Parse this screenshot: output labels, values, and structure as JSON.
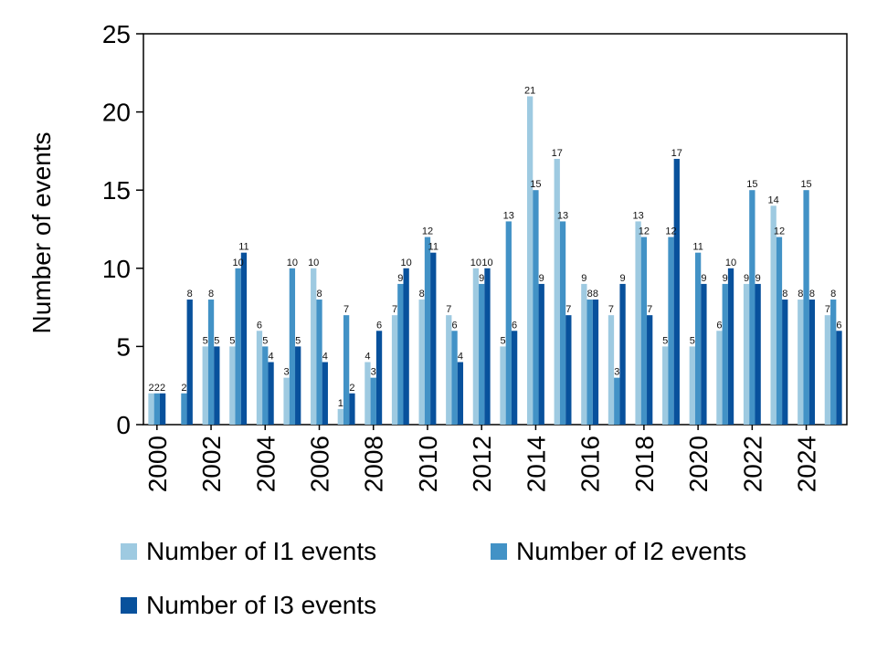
{
  "chart_data": {
    "type": "bar",
    "title": "",
    "xlabel": "",
    "ylabel": "Number of events",
    "ylim": [
      0,
      25
    ],
    "yticks": [
      0,
      5,
      10,
      15,
      20,
      25
    ],
    "grid": false,
    "legend_position": "bottom",
    "categories": [
      "2000",
      "2001",
      "2002",
      "2003",
      "2004",
      "2005",
      "2006",
      "2007",
      "2008",
      "2009",
      "2010",
      "2011",
      "2012",
      "2013",
      "2014",
      "2015",
      "2016",
      "2017",
      "2018",
      "2019",
      "2020",
      "2021",
      "2022",
      "2023",
      "2024",
      "2025"
    ],
    "xtick_labels": [
      "2000",
      "2002",
      "2004",
      "2006",
      "2008",
      "2010",
      "2012",
      "2014",
      "2016",
      "2018",
      "2020",
      "2022",
      "2024"
    ],
    "series": [
      {
        "name": "Number of I1 events",
        "color": "#9ecae1",
        "values": [
          2,
          0,
          5,
          5,
          6,
          3,
          10,
          1,
          4,
          7,
          8,
          7,
          10,
          5,
          21,
          17,
          9,
          7,
          13,
          5,
          5,
          6,
          9,
          14,
          8,
          7
        ]
      },
      {
        "name": "Number of I2 events",
        "color": "#4292c6",
        "values": [
          2,
          2,
          8,
          10,
          5,
          10,
          8,
          7,
          3,
          9,
          12,
          6,
          9,
          13,
          15,
          13,
          8,
          3,
          12,
          12,
          11,
          9,
          15,
          12,
          15,
          8
        ]
      },
      {
        "name": "Number of I3 events",
        "color": "#08519c",
        "values": [
          2,
          8,
          5,
          11,
          4,
          5,
          4,
          2,
          6,
          10,
          11,
          4,
          10,
          6,
          9,
          7,
          8,
          9,
          7,
          17,
          9,
          10,
          9,
          8,
          8,
          6
        ]
      }
    ]
  }
}
